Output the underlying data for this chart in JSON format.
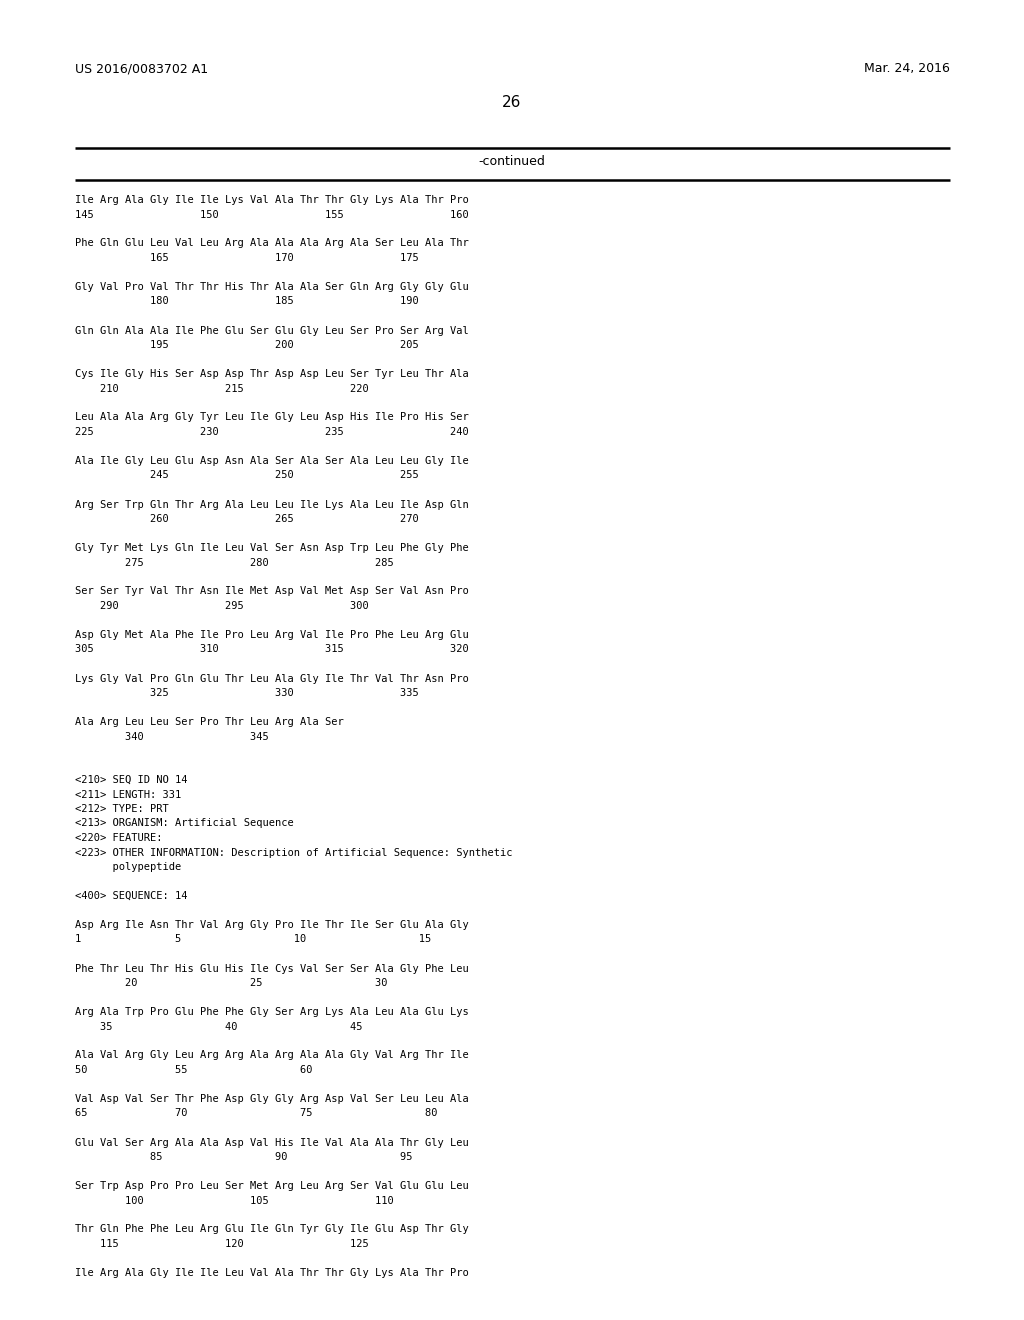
{
  "header_left": "US 2016/0083702 A1",
  "header_right": "Mar. 24, 2016",
  "page_number": "26",
  "continued_label": "-continued",
  "background_color": "#ffffff",
  "text_color": "#000000",
  "lines": [
    "Ile Arg Ala Gly Ile Ile Lys Val Ala Thr Thr Gly Lys Ala Thr Pro",
    "145                 150                 155                 160",
    "",
    "Phe Gln Glu Leu Val Leu Arg Ala Ala Ala Arg Ala Ser Leu Ala Thr",
    "            165                 170                 175",
    "",
    "Gly Val Pro Val Thr Thr His Thr Ala Ala Ser Gln Arg Gly Gly Glu",
    "            180                 185                 190",
    "",
    "Gln Gln Ala Ala Ile Phe Glu Ser Glu Gly Leu Ser Pro Ser Arg Val",
    "            195                 200                 205",
    "",
    "Cys Ile Gly His Ser Asp Asp Thr Asp Asp Leu Ser Tyr Leu Thr Ala",
    "    210                 215                 220",
    "",
    "Leu Ala Ala Arg Gly Tyr Leu Ile Gly Leu Asp His Ile Pro His Ser",
    "225                 230                 235                 240",
    "",
    "Ala Ile Gly Leu Glu Asp Asn Ala Ser Ala Ser Ala Leu Leu Gly Ile",
    "            245                 250                 255",
    "",
    "Arg Ser Trp Gln Thr Arg Ala Leu Leu Ile Lys Ala Leu Ile Asp Gln",
    "            260                 265                 270",
    "",
    "Gly Tyr Met Lys Gln Ile Leu Val Ser Asn Asp Trp Leu Phe Gly Phe",
    "        275                 280                 285",
    "",
    "Ser Ser Tyr Val Thr Asn Ile Met Asp Val Met Asp Ser Val Asn Pro",
    "    290                 295                 300",
    "",
    "Asp Gly Met Ala Phe Ile Pro Leu Arg Val Ile Pro Phe Leu Arg Glu",
    "305                 310                 315                 320",
    "",
    "Lys Gly Val Pro Gln Glu Thr Leu Ala Gly Ile Thr Val Thr Asn Pro",
    "            325                 330                 335",
    "",
    "Ala Arg Leu Leu Ser Pro Thr Leu Arg Ala Ser",
    "        340                 345",
    "",
    "",
    "<210> SEQ ID NO 14",
    "<211> LENGTH: 331",
    "<212> TYPE: PRT",
    "<213> ORGANISM: Artificial Sequence",
    "<220> FEATURE:",
    "<223> OTHER INFORMATION: Description of Artificial Sequence: Synthetic",
    "      polypeptide",
    "",
    "<400> SEQUENCE: 14",
    "",
    "Asp Arg Ile Asn Thr Val Arg Gly Pro Ile Thr Ile Ser Glu Ala Gly",
    "1               5                  10                  15",
    "",
    "Phe Thr Leu Thr His Glu His Ile Cys Val Ser Ser Ala Gly Phe Leu",
    "        20                  25                  30",
    "",
    "Arg Ala Trp Pro Glu Phe Phe Gly Ser Arg Lys Ala Leu Ala Glu Lys",
    "    35                  40                  45",
    "",
    "Ala Val Arg Gly Leu Arg Arg Ala Arg Ala Ala Gly Val Arg Thr Ile",
    "50              55                  60",
    "",
    "Val Asp Val Ser Thr Phe Asp Gly Gly Arg Asp Val Ser Leu Leu Ala",
    "65              70                  75                  80",
    "",
    "Glu Val Ser Arg Ala Ala Asp Val His Ile Val Ala Ala Thr Gly Leu",
    "            85                  90                  95",
    "",
    "Ser Trp Asp Pro Pro Leu Ser Met Arg Leu Arg Ser Val Glu Glu Leu",
    "        100                 105                 110",
    "",
    "Thr Gln Phe Phe Leu Arg Glu Ile Gln Tyr Gly Ile Glu Asp Thr Gly",
    "    115                 120                 125",
    "",
    "Ile Arg Ala Gly Ile Ile Leu Val Ala Thr Thr Gly Lys Ala Thr Pro"
  ]
}
